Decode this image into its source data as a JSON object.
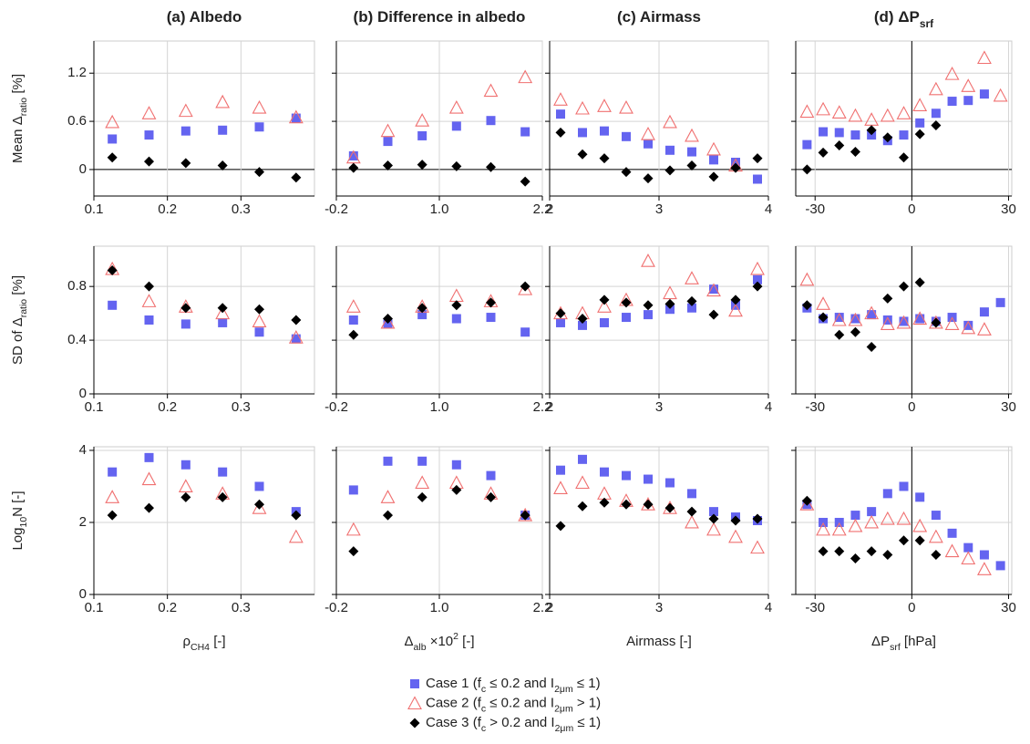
{
  "chart_data": [
    {
      "type": "scatter",
      "title": [
        "(a) Albedo"
      ],
      "ylabel": [
        "Mean Δ",
        {
          "sub": "ratio"
        },
        " [%]"
      ],
      "x": [
        0.125,
        0.175,
        0.225,
        0.275,
        0.325,
        0.375
      ],
      "xlim": [
        0.1,
        0.4
      ],
      "xticks": [
        0.1,
        0.2,
        0.3
      ],
      "ylim": [
        -0.33,
        1.6
      ],
      "yticks": [
        0,
        0.6,
        1.2
      ],
      "show_ytick_labels": true,
      "zero_line": true,
      "grid": true,
      "series": [
        {
          "name": [
            "Case 1 (f",
            {
              "sub": "c"
            },
            " ≤ 0.2 and I",
            {
              "sub": "2μm"
            },
            " ≤ 1)"
          ],
          "color": "#6464f0",
          "marker": "square",
          "values": [
            0.38,
            0.43,
            0.48,
            0.49,
            0.53,
            0.64
          ]
        },
        {
          "name": [
            "Case 2 (f",
            {
              "sub": "c"
            },
            " ≤ 0.2 and I",
            {
              "sub": "2μm"
            },
            " > 1)"
          ],
          "color": "#f07070",
          "marker": "triangle",
          "values": [
            0.59,
            0.7,
            0.73,
            0.84,
            0.77,
            0.65
          ]
        },
        {
          "name": [
            "Case 3 (f",
            {
              "sub": "c"
            },
            " > 0.2 and I",
            {
              "sub": "2μm"
            },
            " ≤ 1)"
          ],
          "color": "#000000",
          "marker": "diamond",
          "values": [
            0.15,
            0.1,
            0.08,
            0.05,
            -0.03,
            -0.1
          ]
        }
      ]
    },
    {
      "type": "scatter",
      "title": [
        "(b) Difference in albedo"
      ],
      "x": [
        0,
        0.4,
        0.8,
        1.2,
        1.6,
        2.0
      ],
      "xlim": [
        -0.2,
        2.2
      ],
      "xticks": [
        -0.2,
        {
          "value": 1,
          "label": "1.0"
        },
        2.2
      ],
      "ylim": [
        -0.33,
        1.6
      ],
      "yticks": [
        0,
        0.6,
        1.2
      ],
      "show_ytick_labels": false,
      "zero_line": true,
      "grid": true,
      "series": [
        {
          "color": "#6464f0",
          "marker": "square",
          "values": [
            0.17,
            0.35,
            0.42,
            0.54,
            0.61,
            0.47
          ]
        },
        {
          "color": "#f07070",
          "marker": "triangle",
          "values": [
            0.15,
            0.48,
            0.61,
            0.77,
            0.98,
            1.15
          ]
        },
        {
          "color": "#000000",
          "marker": "diamond",
          "values": [
            0.02,
            0.05,
            0.06,
            0.04,
            0.03,
            -0.15
          ]
        }
      ]
    },
    {
      "type": "scatter",
      "title": [
        "(c) Airmass"
      ],
      "x": [
        2.1,
        2.3,
        2.5,
        2.7,
        2.9,
        3.1,
        3.3,
        3.5,
        3.7,
        3.9
      ],
      "xlim": [
        2,
        4
      ],
      "xticks": [
        2,
        3,
        4
      ],
      "ylim": [
        -0.33,
        1.6
      ],
      "yticks": [
        0,
        0.6,
        1.2
      ],
      "show_ytick_labels": false,
      "zero_line": true,
      "grid": true,
      "series": [
        {
          "color": "#6464f0",
          "marker": "square",
          "values": [
            0.69,
            0.46,
            0.48,
            0.41,
            0.32,
            0.24,
            0.22,
            0.12,
            0.09,
            -0.12
          ]
        },
        {
          "color": "#f07070",
          "marker": "triangle",
          "values": [
            0.87,
            0.76,
            0.79,
            0.77,
            0.44,
            0.59,
            0.42,
            0.25,
            0.05,
            null
          ]
        },
        {
          "color": "#000000",
          "marker": "diamond",
          "values": [
            0.46,
            0.19,
            0.14,
            -0.03,
            -0.11,
            -0.01,
            0.05,
            -0.09,
            0.02,
            0.14
          ]
        }
      ]
    },
    {
      "type": "scatter",
      "title": [
        "(d) ΔP",
        {
          "sub": "srf"
        }
      ],
      "x": [
        -32.5,
        -27.5,
        -22.5,
        -17.5,
        -12.5,
        -7.5,
        -2.5,
        2.5,
        7.5,
        12.5,
        17.5,
        22.5,
        27.5
      ],
      "xlim": [
        -36,
        31
      ],
      "xticks": [
        -30,
        0,
        30
      ],
      "ylim": [
        -0.33,
        1.6
      ],
      "yticks": [
        0,
        0.6,
        1.2
      ],
      "show_ytick_labels": false,
      "zero_line": true,
      "x_zero_line": true,
      "grid": true,
      "series": [
        {
          "color": "#6464f0",
          "marker": "square",
          "values": [
            0.31,
            0.47,
            0.46,
            0.43,
            0.43,
            0.36,
            0.43,
            0.58,
            0.7,
            0.85,
            0.86,
            0.94,
            null
          ]
        },
        {
          "color": "#f07070",
          "marker": "triangle",
          "values": [
            0.72,
            0.75,
            0.71,
            0.67,
            0.62,
            0.67,
            0.7,
            0.8,
            1.0,
            1.19,
            1.04,
            1.39,
            0.92
          ]
        },
        {
          "color": "#000000",
          "marker": "diamond",
          "values": [
            0.0,
            0.21,
            0.3,
            0.22,
            0.49,
            0.4,
            0.15,
            0.44,
            0.55,
            null,
            null,
            null,
            null
          ]
        }
      ]
    },
    {
      "type": "scatter",
      "ylabel": [
        "SD of Δ",
        {
          "sub": "ratio"
        },
        " [%]"
      ],
      "x": [
        0.125,
        0.175,
        0.225,
        0.275,
        0.325,
        0.375
      ],
      "xlim": [
        0.1,
        0.4
      ],
      "xticks": [
        0.1,
        0.2,
        0.3
      ],
      "ylim": [
        0,
        1.1
      ],
      "yticks": [
        0,
        0.4,
        0.8
      ],
      "show_ytick_labels": true,
      "grid": true,
      "series": [
        {
          "color": "#6464f0",
          "marker": "square",
          "values": [
            0.66,
            0.55,
            0.52,
            0.53,
            0.46,
            0.41
          ]
        },
        {
          "color": "#f07070",
          "marker": "triangle",
          "values": [
            0.93,
            0.69,
            0.65,
            0.6,
            0.54,
            0.42
          ]
        },
        {
          "color": "#000000",
          "marker": "diamond",
          "values": [
            0.92,
            0.8,
            0.64,
            0.64,
            0.63,
            0.55
          ]
        }
      ]
    },
    {
      "type": "scatter",
      "x": [
        0,
        0.4,
        0.8,
        1.2,
        1.6,
        2.0
      ],
      "xlim": [
        -0.2,
        2.2
      ],
      "xticks": [
        -0.2,
        {
          "value": 1,
          "label": "1.0"
        },
        2.2
      ],
      "ylim": [
        0,
        1.1
      ],
      "yticks": [
        0,
        0.4,
        0.8
      ],
      "show_ytick_labels": false,
      "grid": true,
      "series": [
        {
          "color": "#6464f0",
          "marker": "square",
          "values": [
            0.55,
            0.52,
            0.59,
            0.56,
            0.57,
            0.46
          ]
        },
        {
          "color": "#f07070",
          "marker": "triangle",
          "values": [
            0.65,
            0.53,
            0.65,
            0.73,
            0.69,
            0.78
          ]
        },
        {
          "color": "#000000",
          "marker": "diamond",
          "values": [
            0.44,
            0.56,
            0.64,
            0.66,
            0.68,
            0.8
          ]
        }
      ]
    },
    {
      "type": "scatter",
      "x": [
        2.1,
        2.3,
        2.5,
        2.7,
        2.9,
        3.1,
        3.3,
        3.5,
        3.7,
        3.9
      ],
      "xlim": [
        2,
        4
      ],
      "xticks": [
        2,
        3,
        4
      ],
      "ylim": [
        0,
        1.1
      ],
      "yticks": [
        0,
        0.4,
        0.8
      ],
      "show_ytick_labels": false,
      "grid": true,
      "series": [
        {
          "color": "#6464f0",
          "marker": "square",
          "values": [
            0.53,
            0.51,
            0.53,
            0.57,
            0.59,
            0.63,
            0.64,
            0.78,
            0.66,
            0.85
          ]
        },
        {
          "color": "#f07070",
          "marker": "triangle",
          "values": [
            0.6,
            0.6,
            0.65,
            0.7,
            0.99,
            0.75,
            0.86,
            0.77,
            0.62,
            0.93
          ]
        },
        {
          "color": "#000000",
          "marker": "diamond",
          "values": [
            0.6,
            0.56,
            0.7,
            0.68,
            0.66,
            0.67,
            0.69,
            0.59,
            0.7,
            0.8
          ]
        }
      ]
    },
    {
      "type": "scatter",
      "x": [
        -32.5,
        -27.5,
        -22.5,
        -17.5,
        -12.5,
        -7.5,
        -2.5,
        2.5,
        7.5,
        12.5,
        17.5,
        22.5,
        27.5
      ],
      "xlim": [
        -36,
        31
      ],
      "xticks": [
        -30,
        0,
        30
      ],
      "ylim": [
        0,
        1.1
      ],
      "yticks": [
        0,
        0.4,
        0.8
      ],
      "show_ytick_labels": false,
      "x_zero_line": true,
      "grid": true,
      "series": [
        {
          "color": "#6464f0",
          "marker": "square",
          "values": [
            0.64,
            0.56,
            0.57,
            0.56,
            0.59,
            0.55,
            0.54,
            0.56,
            0.54,
            0.57,
            0.51,
            0.61,
            0.68
          ]
        },
        {
          "color": "#f07070",
          "marker": "triangle",
          "values": [
            0.85,
            0.67,
            0.55,
            0.55,
            0.6,
            0.52,
            0.53,
            0.56,
            0.53,
            0.52,
            0.49,
            0.48,
            null
          ]
        },
        {
          "color": "#000000",
          "marker": "diamond",
          "values": [
            0.66,
            0.57,
            0.44,
            0.46,
            0.35,
            0.71,
            0.8,
            0.83,
            0.53,
            null,
            null,
            null,
            null
          ]
        }
      ]
    },
    {
      "type": "scatter",
      "ylabel": [
        "Log",
        {
          "sub": "10"
        },
        "N [-]"
      ],
      "xlabel": [
        "ρ",
        {
          "sub": "CH4"
        },
        " [-]"
      ],
      "x": [
        0.125,
        0.175,
        0.225,
        0.275,
        0.325,
        0.375
      ],
      "xlim": [
        0.1,
        0.4
      ],
      "xticks": [
        0.1,
        0.2,
        0.3
      ],
      "ylim": [
        0,
        4.1
      ],
      "yticks": [
        0,
        2,
        4
      ],
      "show_ytick_labels": true,
      "grid": true,
      "series": [
        {
          "color": "#6464f0",
          "marker": "square",
          "values": [
            3.4,
            3.8,
            3.6,
            3.4,
            3.0,
            2.3
          ]
        },
        {
          "color": "#f07070",
          "marker": "triangle",
          "values": [
            2.7,
            3.2,
            3.0,
            2.8,
            2.4,
            1.6
          ]
        },
        {
          "color": "#000000",
          "marker": "diamond",
          "values": [
            2.2,
            2.4,
            2.7,
            2.7,
            2.5,
            2.2
          ]
        }
      ]
    },
    {
      "type": "scatter",
      "xlabel": [
        "Δ",
        {
          "sub": "alb"
        },
        " ×10",
        {
          "sup": "2"
        },
        " [-]"
      ],
      "x": [
        0,
        0.4,
        0.8,
        1.2,
        1.6,
        2.0
      ],
      "xlim": [
        -0.2,
        2.2
      ],
      "xticks": [
        -0.2,
        {
          "value": 1,
          "label": "1.0"
        },
        2.2
      ],
      "ylim": [
        0,
        4.1
      ],
      "yticks": [
        0,
        2,
        4
      ],
      "show_ytick_labels": false,
      "grid": true,
      "series": [
        {
          "color": "#6464f0",
          "marker": "square",
          "values": [
            2.9,
            3.7,
            3.7,
            3.6,
            3.3,
            2.2
          ]
        },
        {
          "color": "#f07070",
          "marker": "triangle",
          "values": [
            1.8,
            2.7,
            3.1,
            3.1,
            2.8,
            2.2
          ]
        },
        {
          "color": "#000000",
          "marker": "diamond",
          "values": [
            1.2,
            2.2,
            2.7,
            2.9,
            2.7,
            2.2
          ]
        }
      ]
    },
    {
      "type": "scatter",
      "xlabel": [
        "Airmass [-]"
      ],
      "x": [
        2.1,
        2.3,
        2.5,
        2.7,
        2.9,
        3.1,
        3.3,
        3.5,
        3.7,
        3.9
      ],
      "xlim": [
        2,
        4
      ],
      "xticks": [
        2,
        3,
        4
      ],
      "ylim": [
        0,
        4.1
      ],
      "yticks": [
        0,
        2,
        4
      ],
      "show_ytick_labels": false,
      "grid": true,
      "series": [
        {
          "color": "#6464f0",
          "marker": "square",
          "values": [
            3.45,
            3.75,
            3.4,
            3.3,
            3.2,
            3.1,
            2.8,
            2.3,
            2.15,
            2.05
          ]
        },
        {
          "color": "#f07070",
          "marker": "triangle",
          "values": [
            2.95,
            3.1,
            2.8,
            2.6,
            2.5,
            2.4,
            2.0,
            1.8,
            1.6,
            1.3
          ]
        },
        {
          "color": "#000000",
          "marker": "diamond",
          "values": [
            1.9,
            2.45,
            2.55,
            2.5,
            2.5,
            2.4,
            2.3,
            2.1,
            2.05,
            2.1
          ]
        }
      ]
    },
    {
      "type": "scatter",
      "xlabel": [
        "ΔP",
        {
          "sub": "srf"
        },
        " [hPa]"
      ],
      "x": [
        -32.5,
        -27.5,
        -22.5,
        -17.5,
        -12.5,
        -7.5,
        -2.5,
        2.5,
        7.5,
        12.5,
        17.5,
        22.5,
        27.5
      ],
      "xlim": [
        -36,
        31
      ],
      "xticks": [
        -30,
        0,
        30
      ],
      "ylim": [
        0,
        4.1
      ],
      "yticks": [
        0,
        2,
        4
      ],
      "show_ytick_labels": false,
      "x_zero_line": true,
      "grid": true,
      "series": [
        {
          "color": "#6464f0",
          "marker": "square",
          "values": [
            2.5,
            2.0,
            2.0,
            2.2,
            2.3,
            2.8,
            3.0,
            2.7,
            2.2,
            1.7,
            1.3,
            1.1,
            0.8
          ]
        },
        {
          "color": "#f07070",
          "marker": "triangle",
          "values": [
            2.5,
            1.8,
            1.8,
            1.9,
            2.0,
            2.1,
            2.1,
            1.9,
            1.6,
            1.2,
            1.0,
            0.7,
            null
          ]
        },
        {
          "color": "#000000",
          "marker": "diamond",
          "values": [
            2.6,
            1.2,
            1.2,
            1.0,
            1.2,
            1.1,
            1.5,
            1.5,
            1.1,
            null,
            null,
            null,
            null
          ]
        }
      ]
    }
  ]
}
